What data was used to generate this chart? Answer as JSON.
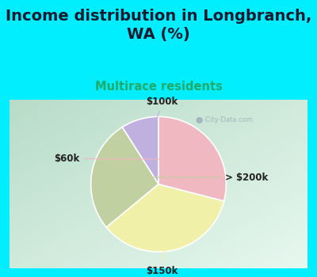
{
  "title": "Income distribution in Longbranch,\nWA (%)",
  "subtitle": "Multirace residents",
  "title_color": "#1a1a2e",
  "subtitle_color": "#22aa66",
  "bg_cyan": "#00eeff",
  "bg_chart_tl": "#c8e8d8",
  "bg_chart_br": "#e8f8f0",
  "labels": [
    "$100k",
    "> $200k",
    "$150k",
    "$60k"
  ],
  "sizes": [
    9,
    27,
    35,
    29
  ],
  "colors": [
    "#c0b0e0",
    "#c0d0a0",
    "#f0f0a8",
    "#f0b8c0"
  ],
  "start_angle": 90,
  "label_fontsize": 8.5,
  "title_fontsize": 14,
  "subtitle_fontsize": 10.5,
  "label_color": "#222222",
  "watermark": "City-Data.com"
}
